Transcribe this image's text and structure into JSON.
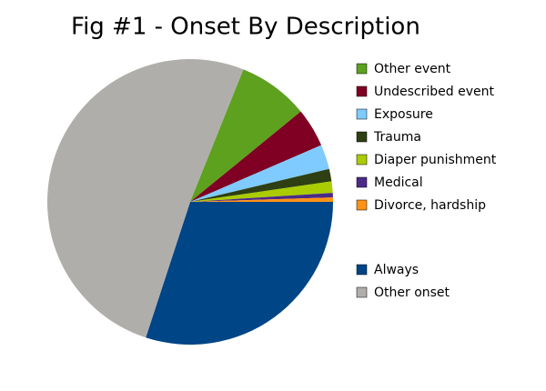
{
  "chart_data": {
    "type": "pie",
    "title": "Fig #1 - Onset By Description",
    "categories": [
      "Other event",
      "Undescribed event",
      "Exposure",
      "Trauma",
      "Diaper punishment",
      "Medical",
      "Divorce, hardship",
      "Always",
      "Other onset"
    ],
    "values": [
      8,
      4.4,
      2.8,
      1.4,
      1.3,
      0.5,
      0.5,
      30,
      51
    ],
    "colors": [
      "#5da11f",
      "#7f0023",
      "#7fcbff",
      "#2d3f13",
      "#aacc00",
      "#4b2a87",
      "#ff9214",
      "#004586",
      "#b0aeab"
    ]
  }
}
